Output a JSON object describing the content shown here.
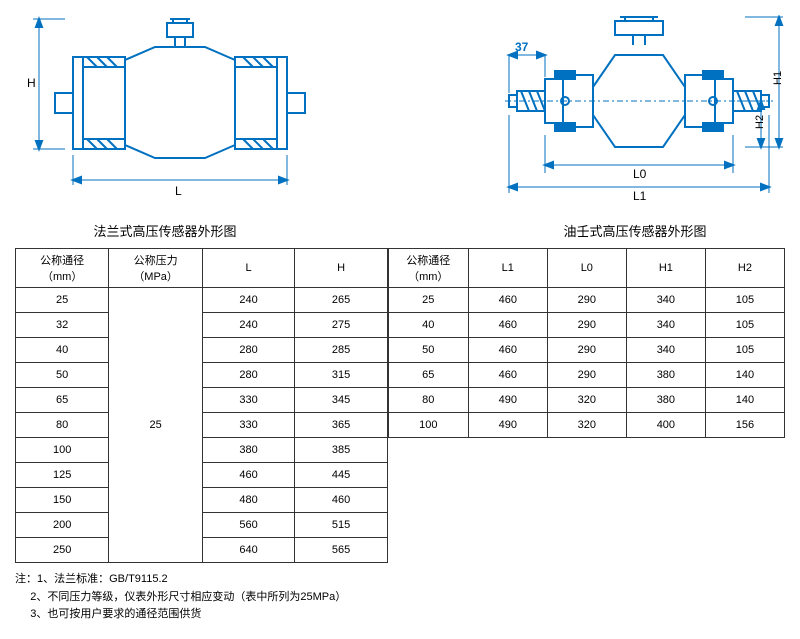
{
  "diagrams": {
    "left": {
      "caption": "法兰式高压传感器外形图",
      "label_H": "H",
      "label_L": "L",
      "stroke": "#0070c0",
      "fill": "#0070c0"
    },
    "right": {
      "caption": "油壬式高压传感器外形图",
      "label_H1": "H1",
      "label_H2": "H2",
      "label_L0": "L0",
      "label_L1": "L1",
      "label_37": "37",
      "stroke": "#0070c0",
      "fill": "#0070c0"
    }
  },
  "left_table": {
    "headers": [
      "公称通径（mm）",
      "公称压力（MPa）",
      "L",
      "H"
    ],
    "pressure_merged": "25",
    "rows": [
      [
        "25",
        "240",
        "265"
      ],
      [
        "32",
        "240",
        "275"
      ],
      [
        "40",
        "280",
        "285"
      ],
      [
        "50",
        "280",
        "315"
      ],
      [
        "65",
        "330",
        "345"
      ],
      [
        "80",
        "330",
        "365"
      ],
      [
        "100",
        "380",
        "385"
      ],
      [
        "125",
        "460",
        "445"
      ],
      [
        "150",
        "480",
        "460"
      ],
      [
        "200",
        "560",
        "515"
      ],
      [
        "250",
        "640",
        "565"
      ]
    ]
  },
  "right_table": {
    "headers": [
      "公称通径（mm）",
      "L1",
      "L0",
      "H1",
      "H2"
    ],
    "rows": [
      [
        "25",
        "460",
        "290",
        "340",
        "105"
      ],
      [
        "40",
        "460",
        "290",
        "340",
        "105"
      ],
      [
        "50",
        "460",
        "290",
        "340",
        "105"
      ],
      [
        "65",
        "460",
        "290",
        "380",
        "140"
      ],
      [
        "80",
        "490",
        "320",
        "380",
        "140"
      ],
      [
        "100",
        "490",
        "320",
        "400",
        "156"
      ]
    ]
  },
  "notes": {
    "prefix": "注：",
    "lines": [
      "1、法兰标准：GB/T9115.2",
      "2、不同压力等级，仪表外形尺寸相应变动（表中所列为25MPa）",
      "3、也可按用户要求的通径范围供货"
    ]
  }
}
